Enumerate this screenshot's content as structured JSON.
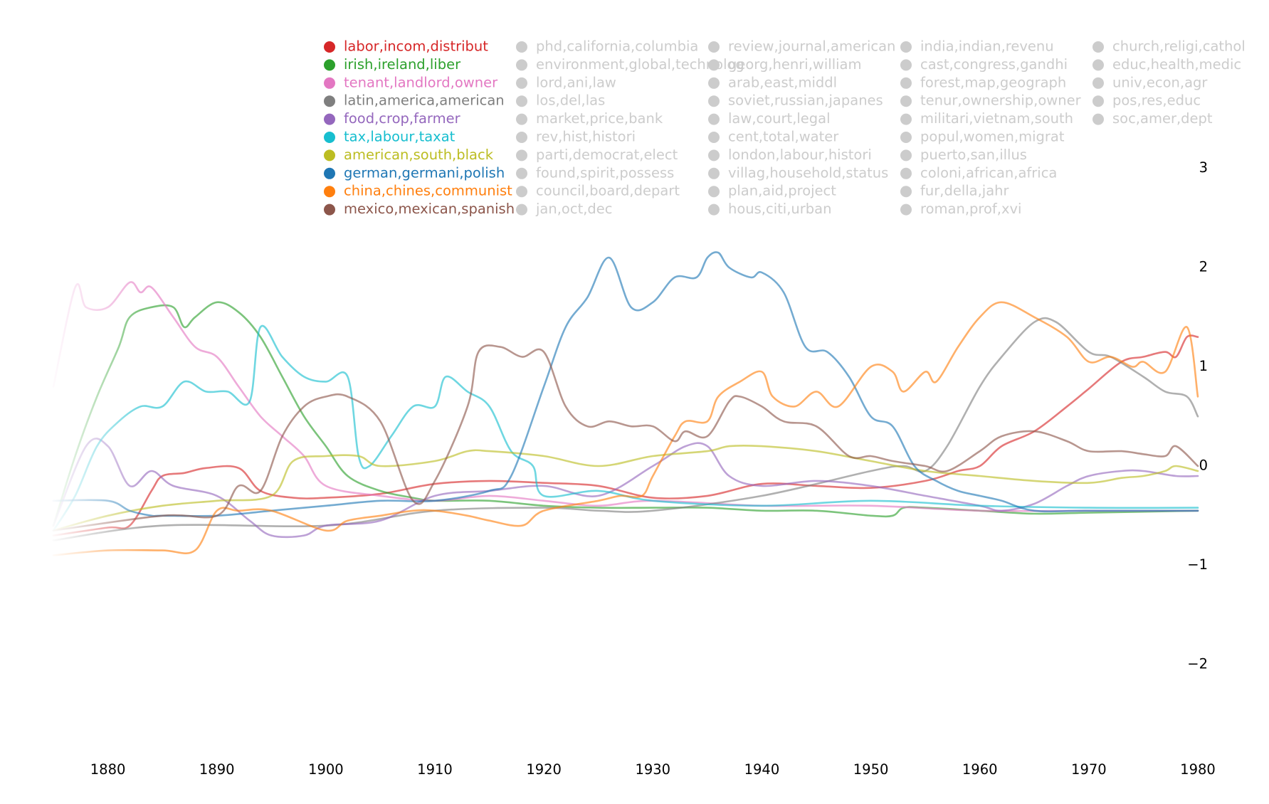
{
  "chart_data": {
    "type": "line",
    "title": "",
    "xlabel": "",
    "ylabel": "",
    "xlim": [
      1875,
      1980
    ],
    "ylim": [
      -2.9,
      3.8
    ],
    "x_ticks": [
      "1880",
      "1890",
      "1900",
      "1910",
      "1920",
      "1930",
      "1940",
      "1950",
      "1960",
      "1970",
      "1980"
    ],
    "x_tick_values": [
      1880,
      1890,
      1900,
      1910,
      1920,
      1930,
      1940,
      1950,
      1960,
      1970,
      1980
    ],
    "y_ticks": [
      "−2",
      "−1",
      "0",
      "1",
      "2",
      "3"
    ],
    "y_tick_values": [
      -2,
      -1,
      0,
      1,
      2,
      3
    ],
    "grid": false,
    "legend_position": "top",
    "legend_muted_color": "#cccccc",
    "legend_columns": [
      [
        {
          "label": "labor,incom,distribut",
          "color": "#d62728",
          "highlighted": true
        },
        {
          "label": "irish,ireland,liber",
          "color": "#2ca02c",
          "highlighted": true
        },
        {
          "label": "tenant,landlord,owner",
          "color": "#e377c2",
          "highlighted": true
        },
        {
          "label": "latin,america,american",
          "color": "#7f7f7f",
          "highlighted": true
        },
        {
          "label": "food,crop,farmer",
          "color": "#9467bd",
          "highlighted": true
        },
        {
          "label": "tax,labour,taxat",
          "color": "#17becf",
          "highlighted": true
        },
        {
          "label": "american,south,black",
          "color": "#bcbd22",
          "highlighted": true
        },
        {
          "label": "german,germani,polish",
          "color": "#1f77b4",
          "highlighted": true
        },
        {
          "label": "china,chines,communist",
          "color": "#ff7f0e",
          "highlighted": true
        },
        {
          "label": "mexico,mexican,spanish",
          "color": "#8c564b",
          "highlighted": true
        }
      ],
      [
        {
          "label": "phd,california,columbia",
          "highlighted": false
        },
        {
          "label": "environment,global,technolog",
          "highlighted": false
        },
        {
          "label": "lord,ani,law",
          "highlighted": false
        },
        {
          "label": "los,del,las",
          "highlighted": false
        },
        {
          "label": "market,price,bank",
          "highlighted": false
        },
        {
          "label": "rev,hist,histori",
          "highlighted": false
        },
        {
          "label": "parti,democrat,elect",
          "highlighted": false
        },
        {
          "label": "found,spirit,possess",
          "highlighted": false
        },
        {
          "label": "council,board,depart",
          "highlighted": false
        },
        {
          "label": "jan,oct,dec",
          "highlighted": false
        }
      ],
      [
        {
          "label": "review,journal,american",
          "highlighted": false
        },
        {
          "label": "georg,henri,william",
          "highlighted": false
        },
        {
          "label": "arab,east,middl",
          "highlighted": false
        },
        {
          "label": "soviet,russian,japanes",
          "highlighted": false
        },
        {
          "label": "law,court,legal",
          "highlighted": false
        },
        {
          "label": "cent,total,water",
          "highlighted": false
        },
        {
          "label": "london,labour,histori",
          "highlighted": false
        },
        {
          "label": "villag,household,status",
          "highlighted": false
        },
        {
          "label": "plan,aid,project",
          "highlighted": false
        },
        {
          "label": "hous,citi,urban",
          "highlighted": false
        }
      ],
      [
        {
          "label": "india,indian,revenu",
          "highlighted": false
        },
        {
          "label": "cast,congress,gandhi",
          "highlighted": false
        },
        {
          "label": "forest,map,geograph",
          "highlighted": false
        },
        {
          "label": "tenur,ownership,owner",
          "highlighted": false
        },
        {
          "label": "militari,vietnam,south",
          "highlighted": false
        },
        {
          "label": "popul,women,migrat",
          "highlighted": false
        },
        {
          "label": "puerto,san,illus",
          "highlighted": false
        },
        {
          "label": "coloni,african,africa",
          "highlighted": false
        },
        {
          "label": "fur,della,jahr",
          "highlighted": false
        },
        {
          "label": "roman,prof,xvi",
          "highlighted": false
        }
      ],
      [
        {
          "label": "church,religi,cathol",
          "highlighted": false
        },
        {
          "label": "educ,health,medic",
          "highlighted": false
        },
        {
          "label": "univ,econ,agr",
          "highlighted": false
        },
        {
          "label": "pos,res,educ",
          "highlighted": false
        },
        {
          "label": "soc,amer,dept",
          "highlighted": false
        }
      ]
    ],
    "series": [
      {
        "name": "labor,incom,distribut",
        "color": "#d62728",
        "x": [
          1875,
          1880,
          1882,
          1884,
          1885,
          1887,
          1889,
          1892,
          1894,
          1897,
          1900,
          1905,
          1910,
          1915,
          1920,
          1925,
          1930,
          1935,
          1940,
          1945,
          1950,
          1955,
          1958,
          1960,
          1962,
          1965,
          1968,
          1970,
          1973,
          1975,
          1977,
          1978,
          1979,
          1980
        ],
        "values": [
          -0.7,
          -0.62,
          -0.6,
          -0.25,
          -0.1,
          -0.07,
          -0.02,
          -0.02,
          -0.25,
          -0.32,
          -0.32,
          -0.28,
          -0.18,
          -0.15,
          -0.17,
          -0.2,
          -0.32,
          -0.3,
          -0.18,
          -0.2,
          -0.22,
          -0.15,
          -0.05,
          0,
          0.2,
          0.35,
          0.6,
          0.78,
          1.05,
          1.1,
          1.15,
          1.1,
          1.3,
          1.3
        ]
      },
      {
        "name": "irish,ireland,liber",
        "color": "#2ca02c",
        "x": [
          1875,
          1877,
          1879,
          1881,
          1882,
          1884,
          1886,
          1887,
          1888,
          1890,
          1892,
          1894,
          1896,
          1898,
          1900,
          1902,
          1905,
          1908,
          1910,
          1915,
          1920,
          1925,
          1930,
          1935,
          1940,
          1945,
          1950,
          1952,
          1953,
          1955,
          1960,
          1965,
          1970,
          1980
        ],
        "values": [
          -0.6,
          0.1,
          0.7,
          1.2,
          1.5,
          1.6,
          1.6,
          1.4,
          1.5,
          1.65,
          1.55,
          1.3,
          0.9,
          0.5,
          0.2,
          -0.1,
          -0.25,
          -0.32,
          -0.35,
          -0.35,
          -0.4,
          -0.42,
          -0.42,
          -0.42,
          -0.45,
          -0.45,
          -0.5,
          -0.5,
          -0.42,
          -0.42,
          -0.45,
          -0.48,
          -0.47,
          -0.45
        ]
      },
      {
        "name": "tenant,landlord,owner",
        "color": "#e377c2",
        "x": [
          1875,
          1877,
          1878,
          1880,
          1882,
          1883,
          1884,
          1886,
          1888,
          1890,
          1892,
          1894,
          1896,
          1898,
          1900,
          1905,
          1910,
          1915,
          1920,
          1925,
          1930,
          1940,
          1950,
          1960,
          1970,
          1980
        ],
        "values": [
          0.8,
          1.8,
          1.6,
          1.6,
          1.85,
          1.75,
          1.8,
          1.5,
          1.2,
          1.1,
          0.8,
          0.5,
          0.3,
          0.1,
          -0.2,
          -0.3,
          -0.35,
          -0.3,
          -0.35,
          -0.4,
          -0.35,
          -0.4,
          -0.4,
          -0.45,
          -0.45,
          -0.45
        ]
      },
      {
        "name": "latin,america,american",
        "color": "#7f7f7f",
        "x": [
          1875,
          1885,
          1900,
          1910,
          1920,
          1925,
          1930,
          1940,
          1950,
          1953,
          1955,
          1957,
          1960,
          1962,
          1965,
          1967,
          1970,
          1972,
          1975,
          1977,
          1979,
          1980
        ],
        "values": [
          -0.75,
          -0.6,
          -0.6,
          -0.45,
          -0.42,
          -0.45,
          -0.45,
          -0.3,
          -0.05,
          0,
          -0.05,
          0.2,
          0.8,
          1.1,
          1.45,
          1.45,
          1.15,
          1.1,
          0.9,
          0.75,
          0.7,
          0.5
        ]
      },
      {
        "name": "food,crop,farmer",
        "color": "#9467bd",
        "x": [
          1875,
          1878,
          1880,
          1882,
          1884,
          1886,
          1890,
          1893,
          1895,
          1898,
          1900,
          1905,
          1910,
          1915,
          1920,
          1925,
          1930,
          1933,
          1935,
          1937,
          1940,
          1945,
          1950,
          1955,
          1960,
          1962,
          1965,
          1968,
          1970,
          1973,
          1975,
          1978,
          1980
        ],
        "values": [
          -0.6,
          0.2,
          0.2,
          -0.2,
          -0.05,
          -0.2,
          -0.3,
          -0.55,
          -0.7,
          -0.7,
          -0.6,
          -0.55,
          -0.3,
          -0.25,
          -0.2,
          -0.3,
          0,
          0.2,
          0.2,
          -0.1,
          -0.2,
          -0.15,
          -0.2,
          -0.3,
          -0.4,
          -0.45,
          -0.38,
          -0.2,
          -0.1,
          -0.05,
          -0.05,
          -0.1,
          -0.1
        ]
      },
      {
        "name": "tax,labour,taxat",
        "color": "#17becf",
        "x": [
          1875,
          1877,
          1879,
          1881,
          1883,
          1885,
          1887,
          1889,
          1891,
          1893,
          1894,
          1896,
          1898,
          1900,
          1902,
          1903,
          1904,
          1906,
          1908,
          1910,
          1911,
          1913,
          1915,
          1917,
          1919,
          1920,
          1925,
          1930,
          1940,
          1950,
          1960,
          1970,
          1980
        ],
        "values": [
          -0.65,
          -0.3,
          0.2,
          0.45,
          0.6,
          0.6,
          0.85,
          0.75,
          0.75,
          0.65,
          1.4,
          1.1,
          0.9,
          0.85,
          0.9,
          0.1,
          0,
          0.3,
          0.6,
          0.6,
          0.9,
          0.75,
          0.6,
          0.15,
          0,
          -0.3,
          -0.25,
          -0.35,
          -0.4,
          -0.35,
          -0.4,
          -0.42,
          -0.42
        ]
      },
      {
        "name": "american,south,black",
        "color": "#bcbd22",
        "x": [
          1875,
          1880,
          1885,
          1890,
          1895,
          1897,
          1900,
          1903,
          1905,
          1910,
          1913,
          1915,
          1920,
          1925,
          1930,
          1935,
          1937,
          1940,
          1945,
          1950,
          1955,
          1960,
          1965,
          1970,
          1973,
          1975,
          1977,
          1978,
          1980
        ],
        "values": [
          -0.65,
          -0.5,
          -0.4,
          -0.35,
          -0.3,
          0.05,
          0.1,
          0.1,
          0,
          0.05,
          0.15,
          0.15,
          0.1,
          0,
          0.1,
          0.15,
          0.2,
          0.2,
          0.15,
          0.05,
          -0.05,
          -0.1,
          -0.15,
          -0.17,
          -0.12,
          -0.1,
          -0.05,
          0,
          -0.05
        ]
      },
      {
        "name": "german,germani,polish",
        "color": "#1f77b4",
        "x": [
          1875,
          1880,
          1882,
          1884,
          1885,
          1890,
          1895,
          1900,
          1905,
          1910,
          1915,
          1917,
          1920,
          1922,
          1924,
          1926,
          1928,
          1930,
          1932,
          1934,
          1935,
          1936,
          1937,
          1939,
          1940,
          1942,
          1944,
          1946,
          1948,
          1950,
          1952,
          1954,
          1956,
          1958,
          1960,
          1962,
          1965,
          1970,
          1980
        ],
        "values": [
          -0.35,
          -0.35,
          -0.45,
          -0.5,
          -0.5,
          -0.5,
          -0.45,
          -0.4,
          -0.35,
          -0.35,
          -0.25,
          -0.1,
          0.8,
          1.4,
          1.7,
          2.1,
          1.6,
          1.65,
          1.9,
          1.9,
          2.1,
          2.15,
          2,
          1.9,
          1.95,
          1.75,
          1.2,
          1.15,
          0.9,
          0.5,
          0.4,
          0,
          -0.15,
          -0.25,
          -0.3,
          -0.35,
          -0.45,
          -0.45,
          -0.45
        ]
      },
      {
        "name": "china,chines,communist",
        "color": "#ff7f0e",
        "x": [
          1875,
          1880,
          1885,
          1888,
          1890,
          1892,
          1895,
          1900,
          1902,
          1905,
          1908,
          1910,
          1913,
          1915,
          1918,
          1920,
          1925,
          1927,
          1929,
          1930,
          1932,
          1933,
          1935,
          1936,
          1938,
          1940,
          1941,
          1943,
          1945,
          1947,
          1950,
          1952,
          1953,
          1955,
          1956,
          1958,
          1960,
          1962,
          1965,
          1968,
          1970,
          1972,
          1974,
          1975,
          1977,
          1979,
          1980
        ],
        "values": [
          -0.9,
          -0.85,
          -0.85,
          -0.85,
          -0.45,
          -0.45,
          -0.45,
          -0.65,
          -0.55,
          -0.5,
          -0.45,
          -0.45,
          -0.5,
          -0.55,
          -0.6,
          -0.45,
          -0.35,
          -0.3,
          -0.3,
          -0.1,
          0.3,
          0.45,
          0.45,
          0.7,
          0.85,
          0.95,
          0.7,
          0.6,
          0.75,
          0.6,
          1,
          0.95,
          0.75,
          0.95,
          0.85,
          1.2,
          1.5,
          1.65,
          1.5,
          1.3,
          1.05,
          1.1,
          1,
          1.05,
          0.95,
          1.4,
          0.7
        ]
      },
      {
        "name": "mexico,mexican,spanish",
        "color": "#8c564b",
        "x": [
          1875,
          1885,
          1890,
          1892,
          1894,
          1896,
          1898,
          1900,
          1902,
          1905,
          1908,
          1910,
          1913,
          1914,
          1916,
          1918,
          1920,
          1922,
          1924,
          1926,
          1928,
          1930,
          1932,
          1933,
          1935,
          1937,
          1938,
          1940,
          1942,
          1945,
          1948,
          1950,
          1952,
          1955,
          1957,
          1960,
          1962,
          1965,
          1968,
          1970,
          1973,
          1975,
          1977,
          1978,
          1980
        ],
        "values": [
          -0.65,
          -0.5,
          -0.5,
          -0.2,
          -0.25,
          0.3,
          0.6,
          0.7,
          0.7,
          0.45,
          -0.35,
          -0.15,
          0.6,
          1.15,
          1.2,
          1.1,
          1.15,
          0.6,
          0.4,
          0.45,
          0.4,
          0.4,
          0.25,
          0.35,
          0.3,
          0.65,
          0.7,
          0.6,
          0.45,
          0.4,
          0.1,
          0.1,
          0.05,
          0,
          -0.05,
          0.15,
          0.3,
          0.35,
          0.25,
          0.15,
          0.15,
          0.12,
          0.1,
          0.2,
          0
        ]
      }
    ]
  }
}
